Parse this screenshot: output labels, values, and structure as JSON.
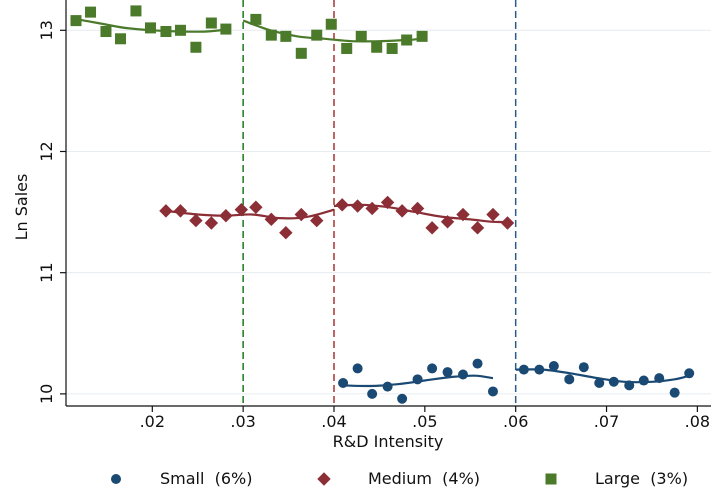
{
  "chart_data": {
    "type": "scatter",
    "title": "",
    "xlabel": "R&D Intensity",
    "ylabel": "Ln Sales",
    "xlim": [
      0.0105,
      0.0815
    ],
    "ylim": [
      9.9,
      13.25
    ],
    "xticks": [
      0.02,
      0.03,
      0.04,
      0.05,
      0.06,
      0.07,
      0.08
    ],
    "xtick_labels": [
      ".02",
      ".03",
      ".04",
      ".05",
      ".06",
      ".07",
      ".08"
    ],
    "yticks": [
      10,
      11,
      12,
      13
    ],
    "ytick_labels": [
      "10",
      "11",
      "12",
      "13"
    ],
    "grid": "horizontal",
    "legend_position": "bottom",
    "thresholds": [
      {
        "x": 0.03,
        "color": "#1a7a1a",
        "style": "dashed"
      },
      {
        "x": 0.04,
        "color": "#a83232",
        "style": "dashed"
      },
      {
        "x": 0.06,
        "color": "#2c5a8a",
        "style": "dashed"
      }
    ],
    "series": [
      {
        "name": "Small  (6%)",
        "marker": "circle",
        "color": "#1a4a73",
        "points": [
          [
            0.041,
            10.09
          ],
          [
            0.0426,
            10.21
          ],
          [
            0.0442,
            10.0
          ],
          [
            0.0459,
            10.06
          ],
          [
            0.0475,
            9.96
          ],
          [
            0.0492,
            10.12
          ],
          [
            0.0508,
            10.21
          ],
          [
            0.0525,
            10.18
          ],
          [
            0.0542,
            10.16
          ],
          [
            0.0558,
            10.25
          ],
          [
            0.0575,
            10.02
          ],
          [
            0.0609,
            10.2
          ],
          [
            0.0626,
            10.2
          ],
          [
            0.0642,
            10.23
          ],
          [
            0.0659,
            10.12
          ],
          [
            0.0675,
            10.22
          ],
          [
            0.0692,
            10.09
          ],
          [
            0.0708,
            10.1
          ],
          [
            0.0725,
            10.07
          ],
          [
            0.0741,
            10.11
          ],
          [
            0.0758,
            10.13
          ],
          [
            0.0775,
            10.01
          ],
          [
            0.0791,
            10.17
          ]
        ],
        "fits": [
          [
            [
              0.041,
              10.07
            ],
            [
              0.044,
              10.065
            ],
            [
              0.047,
              10.08
            ],
            [
              0.05,
              10.11
            ],
            [
              0.053,
              10.14
            ],
            [
              0.0555,
              10.15
            ],
            [
              0.0575,
              10.13
            ]
          ],
          [
            [
              0.06,
              10.2
            ],
            [
              0.063,
              10.2
            ],
            [
              0.066,
              10.17
            ],
            [
              0.069,
              10.13
            ],
            [
              0.072,
              10.1
            ],
            [
              0.075,
              10.1
            ],
            [
              0.0775,
              10.12
            ],
            [
              0.0791,
              10.15
            ]
          ]
        ]
      },
      {
        "name": "Medium  (4%)",
        "marker": "diamond",
        "color": "#8b2e35",
        "points": [
          [
            0.0215,
            11.51
          ],
          [
            0.0231,
            11.51
          ],
          [
            0.0248,
            11.43
          ],
          [
            0.0265,
            11.41
          ],
          [
            0.0281,
            11.47
          ],
          [
            0.0298,
            11.52
          ],
          [
            0.0314,
            11.54
          ],
          [
            0.0331,
            11.44
          ],
          [
            0.0347,
            11.33
          ],
          [
            0.0364,
            11.48
          ],
          [
            0.0381,
            11.43
          ],
          [
            0.0409,
            11.56
          ],
          [
            0.0426,
            11.55
          ],
          [
            0.0442,
            11.53
          ],
          [
            0.0459,
            11.58
          ],
          [
            0.0475,
            11.51
          ],
          [
            0.0492,
            11.53
          ],
          [
            0.0508,
            11.37
          ],
          [
            0.0525,
            11.42
          ],
          [
            0.0542,
            11.48
          ],
          [
            0.0558,
            11.37
          ],
          [
            0.0575,
            11.48
          ],
          [
            0.0591,
            11.41
          ]
        ],
        "fits": [
          [
            [
              0.0215,
              11.51
            ],
            [
              0.025,
              11.48
            ],
            [
              0.028,
              11.47
            ],
            [
              0.031,
              11.48
            ],
            [
              0.034,
              11.45
            ],
            [
              0.037,
              11.46
            ],
            [
              0.04,
              11.52
            ]
          ],
          [
            [
              0.04,
              11.55
            ],
            [
              0.043,
              11.56
            ],
            [
              0.046,
              11.54
            ],
            [
              0.049,
              11.5
            ],
            [
              0.052,
              11.46
            ],
            [
              0.055,
              11.44
            ],
            [
              0.0575,
              11.42
            ],
            [
              0.0591,
              11.42
            ]
          ]
        ]
      },
      {
        "name": "Large  (3%)",
        "marker": "square",
        "color": "#4a7a2a",
        "points": [
          [
            0.0116,
            13.08
          ],
          [
            0.0132,
            13.15
          ],
          [
            0.0149,
            12.99
          ],
          [
            0.0165,
            12.93
          ],
          [
            0.0182,
            13.16
          ],
          [
            0.0198,
            13.02
          ],
          [
            0.0215,
            12.99
          ],
          [
            0.0231,
            13.0
          ],
          [
            0.0248,
            12.86
          ],
          [
            0.0265,
            13.06
          ],
          [
            0.0281,
            13.01
          ],
          [
            0.0314,
            13.09
          ],
          [
            0.0331,
            12.96
          ],
          [
            0.0347,
            12.95
          ],
          [
            0.0364,
            12.81
          ],
          [
            0.0381,
            12.96
          ],
          [
            0.0397,
            13.05
          ],
          [
            0.0414,
            12.85
          ],
          [
            0.043,
            12.95
          ],
          [
            0.0447,
            12.86
          ],
          [
            0.0464,
            12.85
          ],
          [
            0.048,
            12.92
          ],
          [
            0.0497,
            12.95
          ]
        ],
        "fits": [
          [
            [
              0.011,
              13.1
            ],
            [
              0.014,
              13.06
            ],
            [
              0.017,
              13.02
            ],
            [
              0.02,
              13.0
            ],
            [
              0.023,
              12.99
            ],
            [
              0.026,
              12.99
            ],
            [
              0.0285,
              13.01
            ]
          ],
          [
            [
              0.03,
              13.08
            ],
            [
              0.033,
              13.0
            ],
            [
              0.036,
              12.95
            ],
            [
              0.039,
              12.93
            ],
            [
              0.042,
              12.91
            ],
            [
              0.045,
              12.91
            ],
            [
              0.048,
              12.92
            ],
            [
              0.0497,
              12.93
            ]
          ]
        ]
      }
    ]
  }
}
